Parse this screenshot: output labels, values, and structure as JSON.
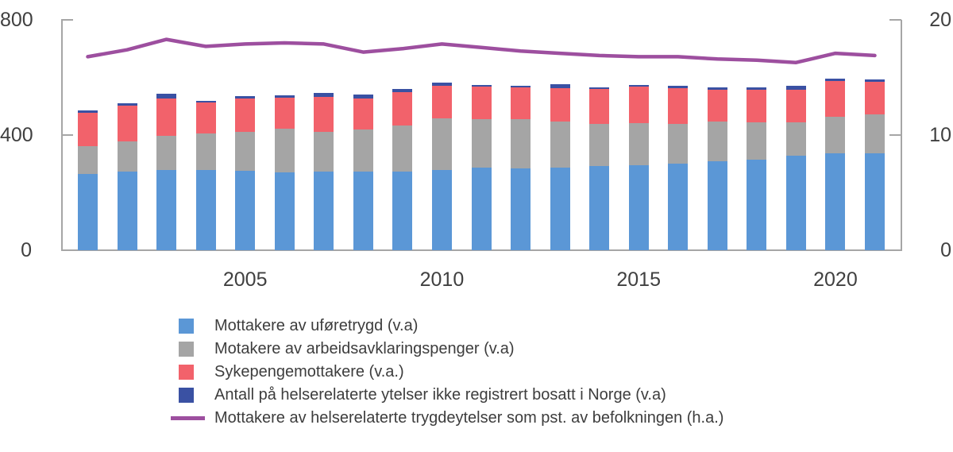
{
  "figure": {
    "background": "#ffffff",
    "axis_color": "#a6a6a6",
    "label_color": "#404040",
    "legend_text_color": "#3d3d3d"
  },
  "chart_data": {
    "type": "bar",
    "stacked": true,
    "grid": false,
    "legend_position": "bottom-left",
    "categories": [
      "2001",
      "2002",
      "2003",
      "2004",
      "2005",
      "2006",
      "2007",
      "2008",
      "2009",
      "2010",
      "2011",
      "2012",
      "2013",
      "2014",
      "2015",
      "2016",
      "2017",
      "2018",
      "2019",
      "2020",
      "2021"
    ],
    "series": [
      {
        "key": "uforetrygd",
        "name": "Mottakere av uføretrygd (v.a)",
        "kind": "bar",
        "axis": "left",
        "color": "#5B97D6",
        "values": [
          265,
          272,
          279,
          278,
          277,
          271,
          273,
          272,
          273,
          279,
          286,
          285,
          286,
          293,
          294,
          301,
          308,
          314,
          329,
          337,
          337
        ]
      },
      {
        "key": "arbeidsavklaringspenger",
        "name": "Motakere av arbeidsavklaringspenger (v.a)",
        "kind": "bar",
        "axis": "left",
        "color": "#A5A5A5",
        "values": [
          96,
          105,
          119,
          127,
          133,
          150,
          139,
          146,
          161,
          178,
          169,
          170,
          162,
          146,
          148,
          138,
          138,
          130,
          115,
          127,
          134
        ]
      },
      {
        "key": "sykepenger",
        "name": "Sykepengemottakere (v.a.)",
        "kind": "bar",
        "axis": "left",
        "color": "#F2626B",
        "values": [
          116,
          125,
          130,
          108,
          118,
          109,
          121,
          109,
          116,
          113,
          112,
          111,
          114,
          120,
          125,
          125,
          112,
          113,
          112,
          124,
          115
        ]
      },
      {
        "key": "ikke-registrert-bosatt",
        "name": "Antall på helserelaterte ytelser ikke registrert bosatt i Norge (v.a)",
        "kind": "bar",
        "axis": "left",
        "color": "#3A51A3",
        "values": [
          8,
          7,
          16,
          6,
          7,
          7,
          13,
          15,
          9,
          13,
          6,
          6,
          15,
          7,
          7,
          7,
          7,
          8,
          16,
          7,
          7
        ]
      },
      {
        "key": "pst-av-befolkningen",
        "name": "Mottakere av helserelaterte trygdeytelser som pst. av befolkningen (h.a.)",
        "kind": "line",
        "axis": "right",
        "color": "#9D4F9F",
        "values": [
          16.8,
          17.4,
          18.3,
          17.7,
          17.9,
          18.0,
          17.9,
          17.2,
          17.5,
          17.9,
          17.6,
          17.3,
          17.1,
          16.9,
          16.8,
          16.8,
          16.6,
          16.5,
          16.3,
          17.1,
          16.9
        ]
      }
    ],
    "left_axis": {
      "range": [
        0,
        800
      ],
      "ticks": [
        0,
        400,
        800
      ]
    },
    "right_axis": {
      "range": [
        0,
        20
      ],
      "ticks": [
        0,
        10,
        20
      ]
    },
    "x_tick_labels": [
      "2005",
      "2010",
      "2015",
      "2020"
    ],
    "title": "",
    "xlabel": "",
    "ylabel": ""
  }
}
